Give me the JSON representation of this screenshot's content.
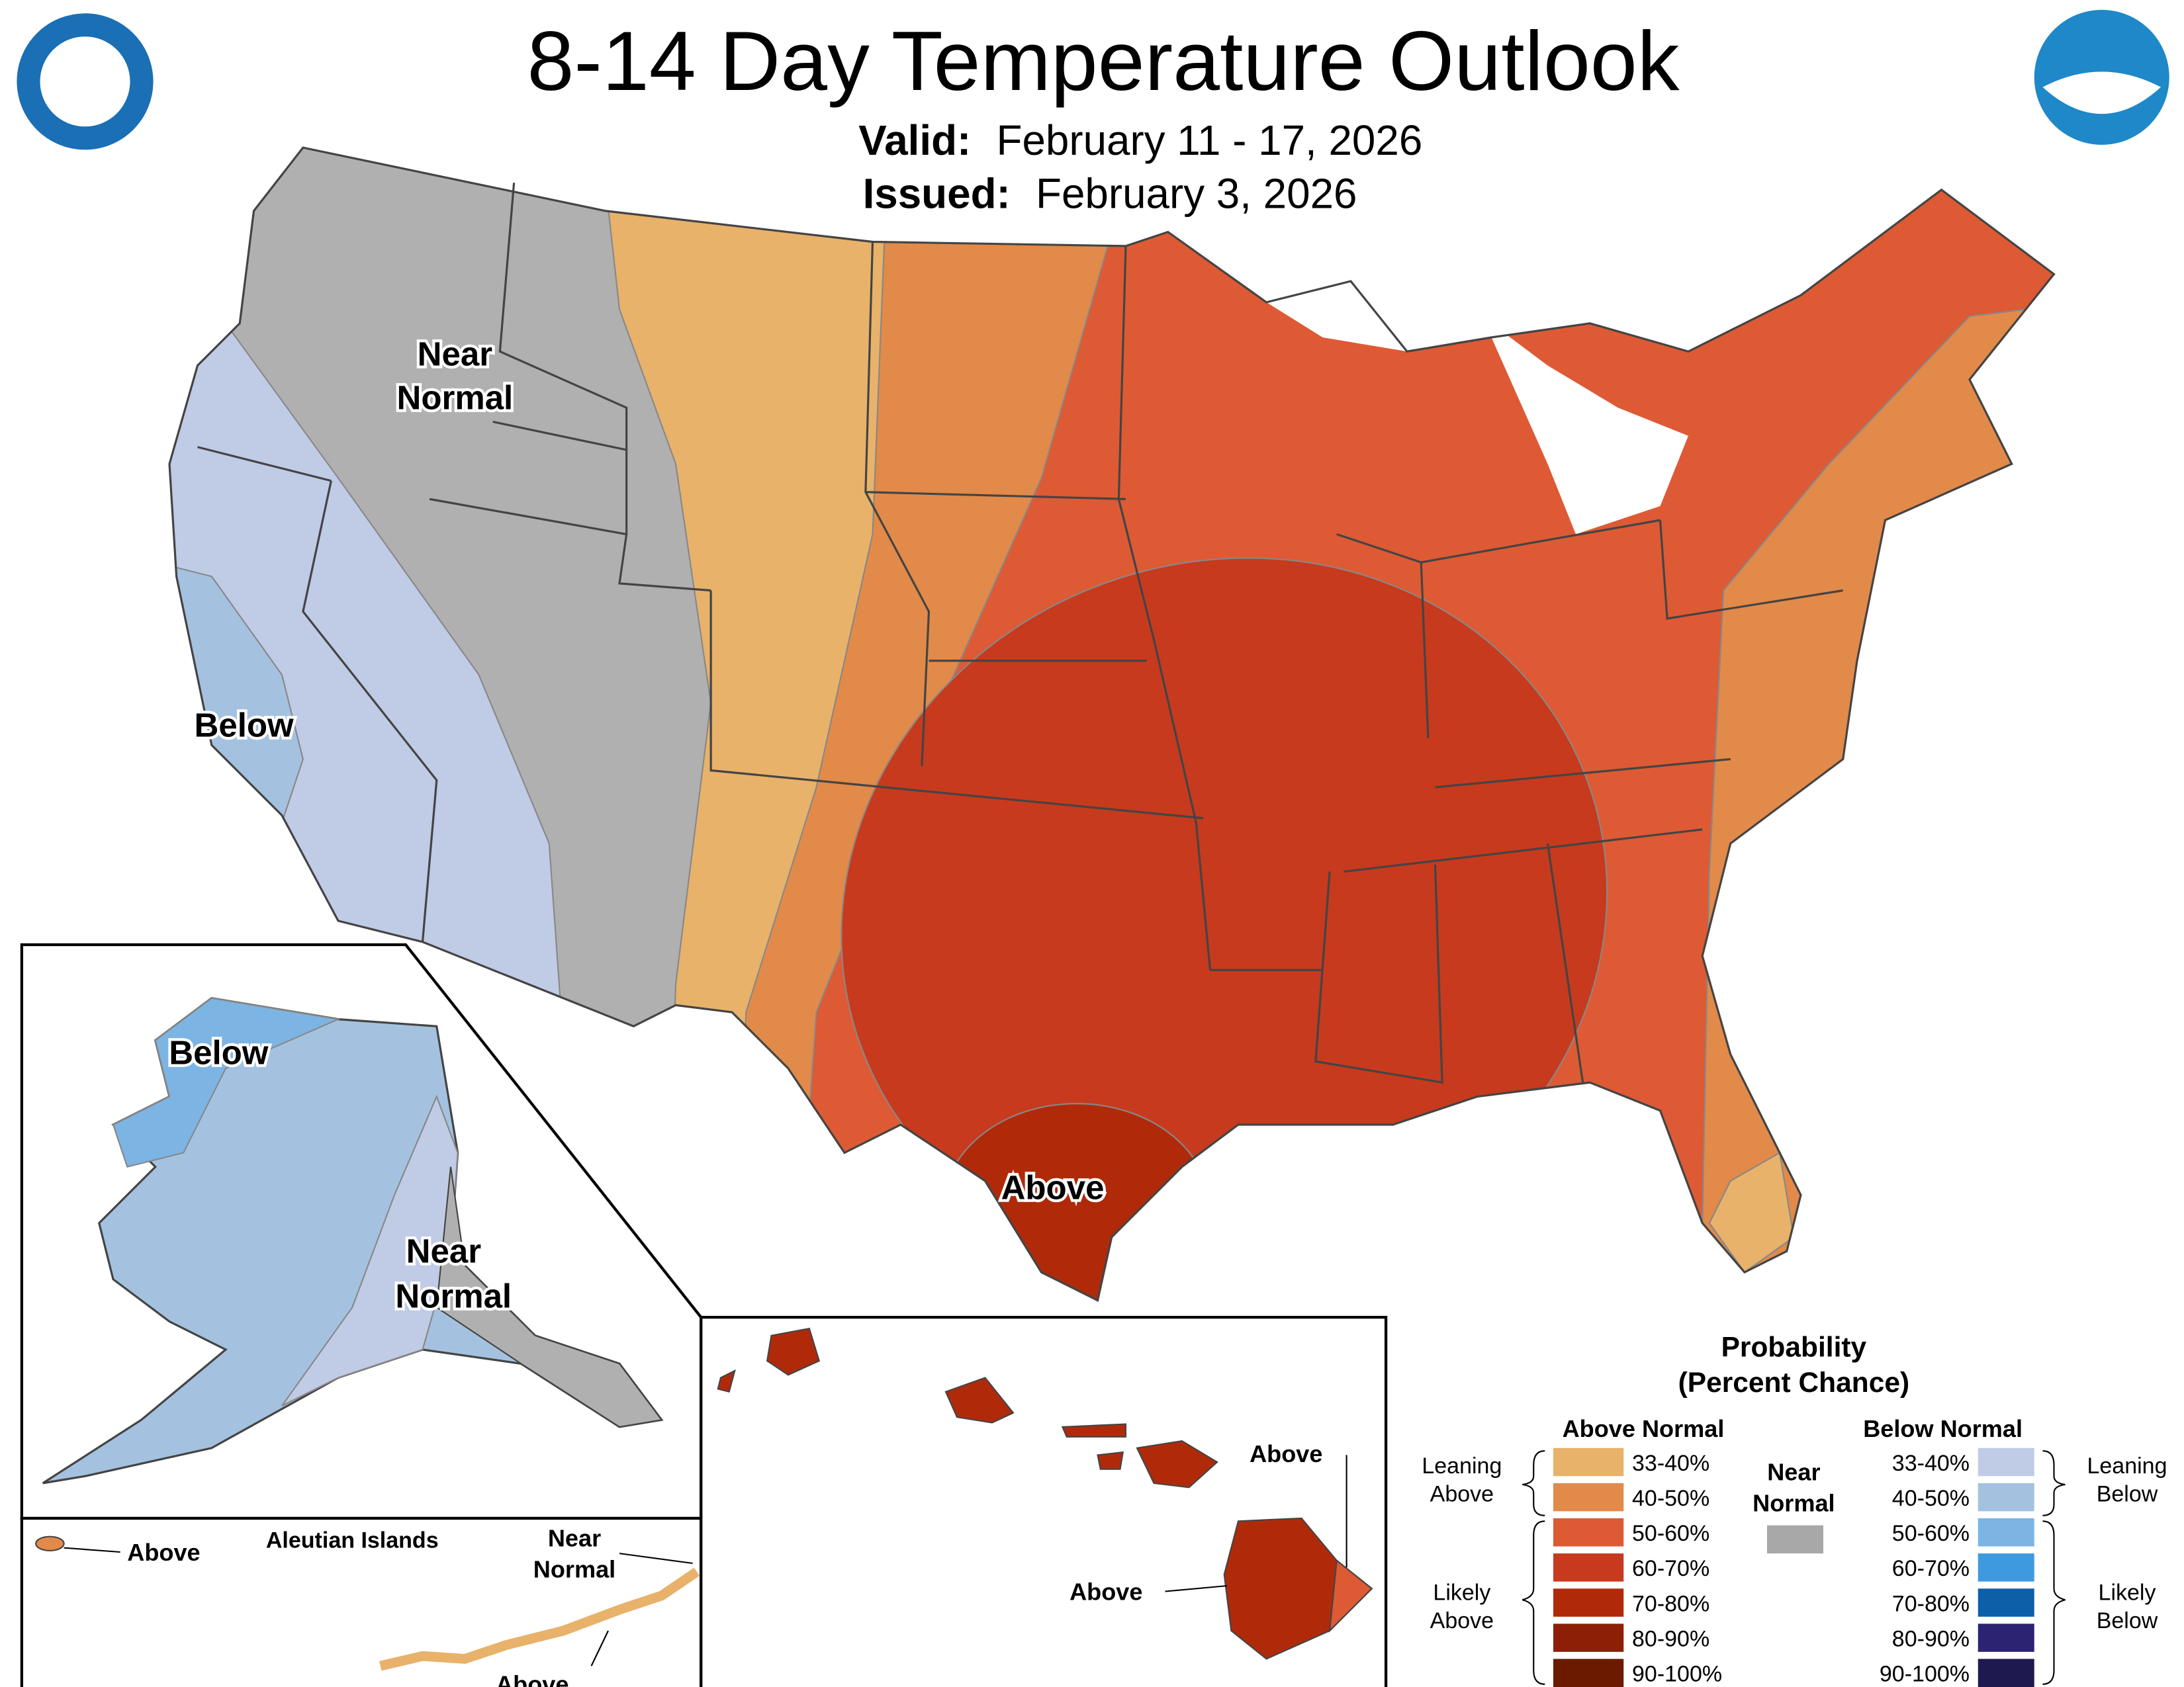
{
  "header": {
    "title": "8-14 Day Temperature Outlook",
    "valid_label": "Valid:",
    "valid": "February 11 - 17, 2026",
    "issued_label": "Issued:",
    "issued": "February 3, 2026"
  },
  "map_labels": {
    "conus_near_normal": [
      "Near",
      "Normal"
    ],
    "conus_below": "Below",
    "conus_above": "Above",
    "alaska_below": "Below",
    "alaska_near_normal": [
      "Near",
      "Normal"
    ],
    "aleutian_title": "Aleutian Islands",
    "aleutian_above_west": "Above",
    "aleutian_near_normal": [
      "Near",
      "Normal"
    ],
    "aleutian_above_east": "Above",
    "hawaii_above_north": "Above",
    "hawaii_above_south": "Above"
  },
  "legend": {
    "title": [
      "Probability",
      "(Percent Chance)"
    ],
    "above_normal": {
      "heading": "Above Normal",
      "bins": [
        {
          "label": "33-40%",
          "color": "#e8b26a"
        },
        {
          "label": "40-50%",
          "color": "#e28a49"
        },
        {
          "label": "50-60%",
          "color": "#dd5a34"
        },
        {
          "label": "60-70%",
          "color": "#c73a1d"
        },
        {
          "label": "70-80%",
          "color": "#b02a0a"
        },
        {
          "label": "80-90%",
          "color": "#8c1f05"
        },
        {
          "label": "90-100%",
          "color": "#6b1a00"
        }
      ]
    },
    "near_normal": {
      "heading": [
        "Near",
        "Normal"
      ],
      "color": "#a8a8a8"
    },
    "below_normal": {
      "heading": "Below Normal",
      "bins": [
        {
          "label": "33-40%",
          "color": "#c0cbe6"
        },
        {
          "label": "40-50%",
          "color": "#a4c2e0"
        },
        {
          "label": "50-60%",
          "color": "#7cb4e4"
        },
        {
          "label": "60-70%",
          "color": "#3e9ade"
        },
        {
          "label": "70-80%",
          "color": "#0d5fa8"
        },
        {
          "label": "80-90%",
          "color": "#2c2373"
        },
        {
          "label": "90-100%",
          "color": "#1e1a4f"
        }
      ]
    },
    "leaning_above": [
      "Leaning",
      "Above"
    ],
    "likely_above": [
      "Likely",
      "Above"
    ],
    "leaning_below": [
      "Leaning",
      "Below"
    ],
    "likely_below": [
      "Likely",
      "Below"
    ]
  }
}
